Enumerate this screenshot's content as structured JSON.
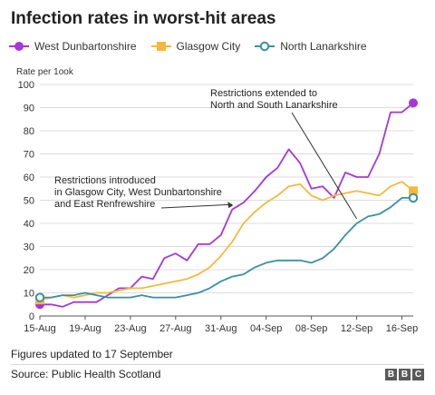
{
  "header": {
    "title": "Infection rates in worst-hit areas"
  },
  "footer": {
    "note": "Figures updated to 17 September",
    "source": "Source: Public Health Scotland",
    "logo_letters": [
      "B",
      "B",
      "C"
    ]
  },
  "chart_data": {
    "type": "line",
    "title": "Infection rates in worst-hit areas",
    "ylabel": "Rate per 1ook",
    "xlabel": "",
    "ylim": [
      0,
      100
    ],
    "yticks": [
      0,
      10,
      20,
      30,
      40,
      50,
      60,
      70,
      80,
      90,
      100
    ],
    "grid": true,
    "legend_position": "top",
    "x": [
      "15-Aug",
      "16-Aug",
      "17-Aug",
      "18-Aug",
      "19-Aug",
      "20-Aug",
      "21-Aug",
      "22-Aug",
      "23-Aug",
      "24-Aug",
      "25-Aug",
      "26-Aug",
      "27-Aug",
      "28-Aug",
      "29-Aug",
      "30-Aug",
      "31-Aug",
      "01-Sep",
      "02-Sep",
      "03-Sep",
      "04-Sep",
      "05-Sep",
      "06-Sep",
      "07-Sep",
      "08-Sep",
      "09-Sep",
      "10-Sep",
      "11-Sep",
      "12-Sep",
      "13-Sep",
      "14-Sep",
      "15-Sep",
      "16-Sep",
      "17-Sep"
    ],
    "xtick_labels": [
      "15-Aug",
      "19-Aug",
      "23-Aug",
      "27-Aug",
      "31-Aug",
      "04-Sep",
      "08-Sep",
      "12-Sep",
      "16-Sep"
    ],
    "series": [
      {
        "name": "West Dunbartonshire",
        "color": "#a637d9",
        "marker": "circle",
        "values": [
          5,
          5,
          4,
          6,
          6,
          6,
          9,
          12,
          12,
          17,
          16,
          25,
          27,
          24,
          31,
          31,
          35,
          46,
          49,
          54,
          60,
          64,
          72,
          66,
          55,
          56,
          51,
          62,
          60,
          60,
          70,
          88,
          88,
          92
        ]
      },
      {
        "name": "Glasgow City",
        "color": "#f5b83d",
        "marker": "square",
        "values": [
          7,
          8,
          9,
          8,
          9,
          10,
          10,
          11,
          12,
          12,
          13,
          14,
          15,
          16,
          18,
          21,
          26,
          32,
          40,
          45,
          49,
          52,
          56,
          57,
          52,
          50,
          52,
          53,
          54,
          53,
          52,
          56,
          58,
          54
        ]
      },
      {
        "name": "North Lanarkshire",
        "color": "#3a8fa3",
        "marker": "ring",
        "values": [
          8,
          8,
          9,
          9,
          10,
          9,
          8,
          8,
          8,
          9,
          8,
          8,
          8,
          9,
          10,
          12,
          15,
          17,
          18,
          21,
          23,
          24,
          24,
          24,
          23,
          25,
          29,
          35,
          40,
          43,
          44,
          47,
          51,
          51
        ]
      }
    ],
    "annotations": [
      {
        "lines": [
          "Restrictions introduced",
          "in Glasgow City, West Dunbartonshire",
          "and East Renfrewshire"
        ],
        "x": "01-Sep",
        "y": 47
      },
      {
        "lines": [
          "Restrictions extended to",
          "North and South Lanarkshire"
        ],
        "x": "12-Sep",
        "y": 42
      }
    ]
  }
}
